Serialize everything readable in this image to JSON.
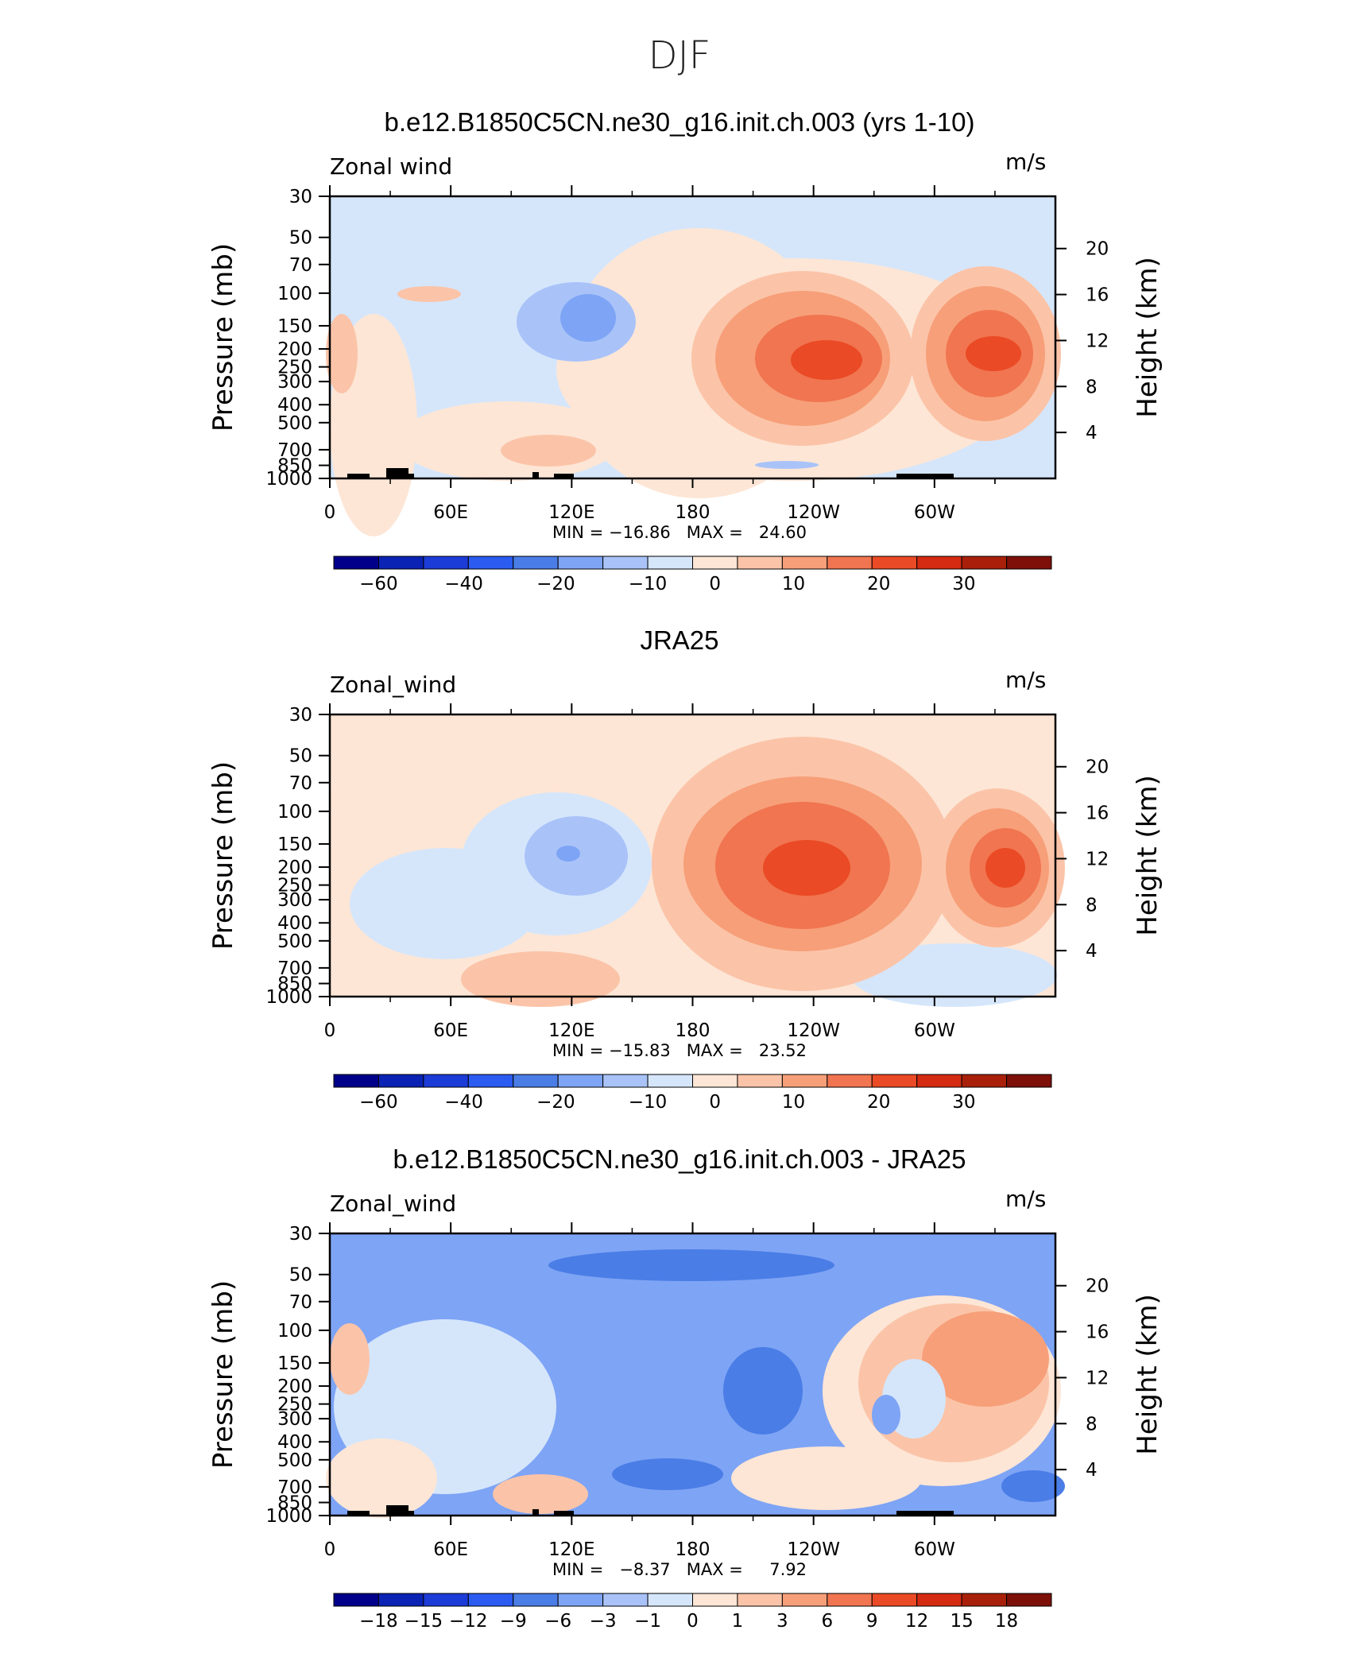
{
  "page_title": "DJF",
  "colorbar_colors": [
    "#00008b",
    "#0a23b4",
    "#1c3cd7",
    "#2b5bf0",
    "#4a7de6",
    "#7ea4f5",
    "#a9c3f9",
    "#d5e6fb",
    "#fde6d6",
    "#fbc4a8",
    "#f79f79",
    "#f07550",
    "#ea4a25",
    "#d42b12",
    "#a9200a",
    "#7d1008"
  ],
  "chart_data": [
    {
      "type": "heatmap",
      "title": "b.e12.B1850C5CN.ne30_g16.init.ch.003 (yrs 1-10)",
      "variable": "Zonal wind",
      "units": "m/s",
      "ylabel": "Pressure (mb)",
      "ylabel_right": "Height (km)",
      "x_ticks": [
        "0",
        "60E",
        "120E",
        "180",
        "120W",
        "60W"
      ],
      "y_ticks": [
        "30",
        "50",
        "70",
        "100",
        "150",
        "200",
        "250",
        "300",
        "400",
        "500",
        "700",
        "850",
        "1000"
      ],
      "height_ticks": [
        "20",
        "16",
        "12",
        "8",
        "4"
      ],
      "stats": "MIN = −16.86   MAX =   24.60",
      "colorbar_labels": [
        "−60",
        "−40",
        "−20",
        "−10",
        "0",
        "10",
        "20",
        "30"
      ],
      "field": [
        {
          "lon": 0,
          "p": 150,
          "value": 10
        },
        {
          "lon": 115,
          "p": 140,
          "value": -15
        },
        {
          "lon": 245,
          "p": 150,
          "value": 24
        },
        {
          "lon": 322,
          "p": 150,
          "value": 20
        },
        {
          "lon": 110,
          "p": 780,
          "value": 8
        },
        {
          "lon": 35,
          "p": 110,
          "value": 4
        },
        {
          "lon": 225,
          "p": 880,
          "value": -5
        }
      ],
      "min": -16.86,
      "max": 24.6
    },
    {
      "type": "heatmap",
      "title": "JRA25",
      "variable": "Zonal_wind",
      "units": "m/s",
      "ylabel": "Pressure (mb)",
      "ylabel_right": "Height (km)",
      "x_ticks": [
        "0",
        "60E",
        "120E",
        "180",
        "120W",
        "60W"
      ],
      "y_ticks": [
        "30",
        "50",
        "70",
        "100",
        "150",
        "200",
        "250",
        "300",
        "400",
        "500",
        "700",
        "850",
        "1000"
      ],
      "height_ticks": [
        "20",
        "16",
        "12",
        "8",
        "4"
      ],
      "stats": "MIN = −15.83   MAX =   23.52",
      "colorbar_labels": [
        "−60",
        "−40",
        "−20",
        "−10",
        "0",
        "10",
        "20",
        "30"
      ],
      "field": [
        {
          "lon": 118,
          "p": 160,
          "value": -15
        },
        {
          "lon": 228,
          "p": 160,
          "value": 23
        },
        {
          "lon": 330,
          "p": 150,
          "value": 18
        },
        {
          "lon": 100,
          "p": 760,
          "value": 5
        },
        {
          "lon": 270,
          "p": 850,
          "value": -4
        }
      ],
      "min": -15.83,
      "max": 23.52
    },
    {
      "type": "heatmap",
      "title": "b.e12.B1850C5CN.ne30_g16.init.ch.003 - JRA25",
      "variable": "Zonal_wind",
      "units": "m/s",
      "ylabel": "Pressure (mb)",
      "ylabel_right": "Height (km)",
      "x_ticks": [
        "0",
        "60E",
        "120E",
        "180",
        "120W",
        "60W"
      ],
      "y_ticks": [
        "30",
        "50",
        "70",
        "100",
        "150",
        "200",
        "250",
        "300",
        "400",
        "500",
        "700",
        "850",
        "1000"
      ],
      "height_ticks": [
        "20",
        "16",
        "12",
        "8",
        "4"
      ],
      "stats": "MIN =   −8.37   MAX =     7.92",
      "colorbar_labels": [
        "−18",
        "−15",
        "−12",
        "−9",
        "−6",
        "−3",
        "−1",
        "0",
        "1",
        "3",
        "6",
        "9",
        "12",
        "15",
        "18"
      ],
      "field": [
        {
          "lon": 200,
          "p": 50,
          "value": -8
        },
        {
          "lon": 200,
          "p": 200,
          "value": -6
        },
        {
          "lon": 325,
          "p": 180,
          "value": 6
        },
        {
          "lon": 10,
          "p": 180,
          "value": 4
        },
        {
          "lon": 110,
          "p": 750,
          "value": 3
        },
        {
          "lon": 280,
          "p": 230,
          "value": -4
        }
      ],
      "min": -8.37,
      "max": 7.92
    }
  ]
}
